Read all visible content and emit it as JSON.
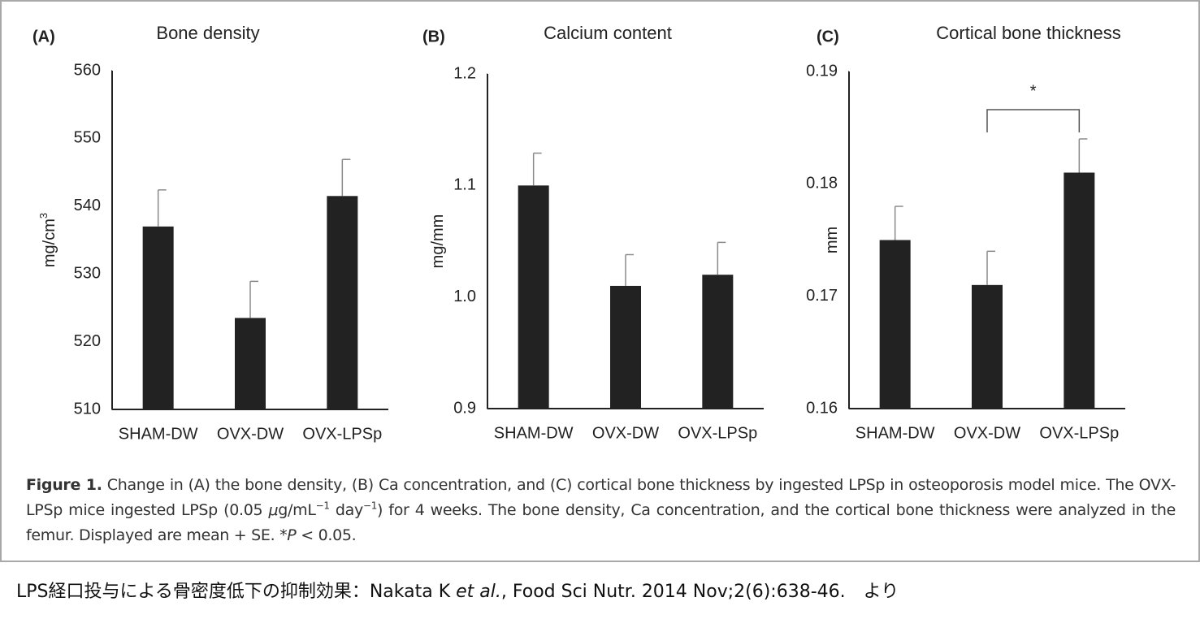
{
  "chart_data": [
    {
      "type": "bar",
      "panel_label": "(A)",
      "title": "Bone density",
      "y_label": "mg/cm",
      "y_label_superscript": "3",
      "categories": [
        "SHAM-DW",
        "OVX-DW",
        "OVX-LPSp"
      ],
      "values": [
        537,
        523.5,
        541.5
      ],
      "errors": [
        5.4,
        5.4,
        5.4
      ],
      "color": "#222222",
      "error_color": "#8a8a8a",
      "ylim": [
        510,
        560
      ],
      "yticks": [
        510,
        520,
        530,
        540,
        550,
        560
      ],
      "grid": false
    },
    {
      "type": "bar",
      "panel_label": "(B)",
      "title": "Calcium content",
      "y_label": "mg/mm",
      "categories": [
        "SHAM-DW",
        "OVX-DW",
        "OVX-LPSp"
      ],
      "values": [
        1.1,
        1.01,
        1.02
      ],
      "errors": [
        0.029,
        0.028,
        0.029
      ],
      "color": "#222222",
      "error_color": "#8a8a8a",
      "ylim": [
        0.9,
        1.2
      ],
      "yticks": [
        {
          "value": 0.9,
          "label": "0.9"
        },
        {
          "value": 1,
          "label": "1.0"
        },
        {
          "value": 1.1,
          "label": "1.1"
        },
        {
          "value": 1.2,
          "label": "1.2"
        }
      ],
      "grid": false
    },
    {
      "type": "bar",
      "panel_label": "(C)",
      "title": "Cortical bone thickness",
      "y_label": "mm",
      "categories": [
        "SHAM-DW",
        "OVX-DW",
        "OVX-LPSp"
      ],
      "values": [
        0.175,
        0.171,
        0.181
      ],
      "errors": [
        0.003,
        0.003,
        0.003
      ],
      "color": "#222222",
      "error_color": "#8a8a8a",
      "ylim": [
        0.16,
        0.19
      ],
      "yticks": [
        0.16,
        0.17,
        0.18,
        0.19
      ],
      "grid": false,
      "annotations": [
        {
          "text": "*",
          "between": [
            "OVX-DW",
            "OVX-LPSp"
          ]
        }
      ]
    }
  ],
  "caption": {
    "label": "Figure 1.",
    "parts": [
      " Change in (A) the bone density, (B) Ca concentration, and (C) cortical bone thickness by ingested LPSp in osteoporosis model mice. The OVX-LPSp mice ingested LPSp (0.05 ",
      "μ",
      "g/mL",
      "−1",
      " day",
      "−1",
      ") for 4 weeks. The bone density, Ca concentration, and the cortical bone thickness were analyzed in the femur. Displayed are mean + SE. *",
      "P",
      " < 0.05."
    ]
  },
  "source": {
    "parts": [
      "LPS経口投与による骨密度低下の抑制効果：Nakata K ",
      "et al.",
      ", Food Sci Nutr. 2014 Nov;2(6):638-46.　より"
    ]
  }
}
